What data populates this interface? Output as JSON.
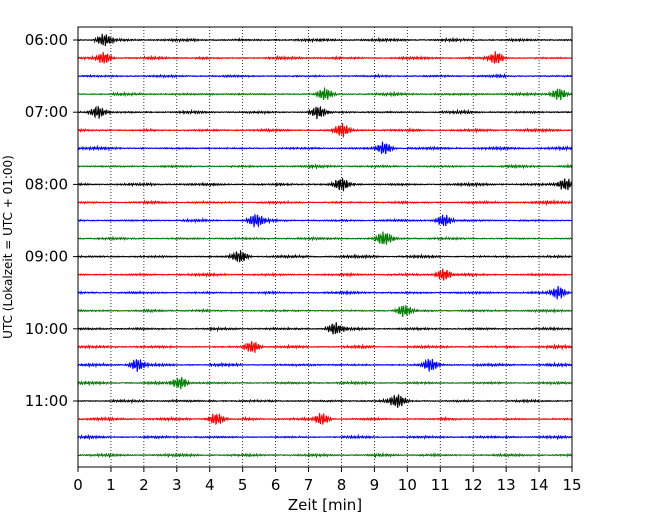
{
  "chart_data": {
    "type": "line",
    "title": "",
    "xlabel": "Zeit  [min]",
    "ylabel": "UTC (Lokalzeit = UTC + 01:00)",
    "xlim": [
      0,
      15
    ],
    "x_ticks": [
      0,
      1,
      2,
      3,
      4,
      5,
      6,
      7,
      8,
      9,
      10,
      11,
      12,
      13,
      14,
      15
    ],
    "y_tick_labels": [
      "06:00",
      "07:00",
      "08:00",
      "09:00",
      "10:00",
      "11:00"
    ],
    "grid": "vertical dotted",
    "legend": "none",
    "trace_interval_min": 15,
    "first_trace": "06:00",
    "trace_count": 24,
    "trace_colors": [
      "#000000",
      "#ff0000",
      "#0000ff",
      "#007f00"
    ],
    "traces": [
      {
        "start": "06:00",
        "color": "#000000",
        "bursts": [
          0.8
        ]
      },
      {
        "start": "06:15",
        "color": "#ff0000",
        "bursts": [
          0.8,
          12.7
        ]
      },
      {
        "start": "06:30",
        "color": "#0000ff",
        "bursts": []
      },
      {
        "start": "06:45",
        "color": "#007f00",
        "bursts": [
          7.5,
          14.6
        ]
      },
      {
        "start": "07:00",
        "color": "#000000",
        "bursts": [
          0.6,
          7.3
        ]
      },
      {
        "start": "07:15",
        "color": "#ff0000",
        "bursts": [
          8.0
        ]
      },
      {
        "start": "07:30",
        "color": "#0000ff",
        "bursts": [
          9.3
        ]
      },
      {
        "start": "07:45",
        "color": "#007f00",
        "bursts": []
      },
      {
        "start": "08:00",
        "color": "#000000",
        "bursts": [
          8.0,
          14.8
        ]
      },
      {
        "start": "08:15",
        "color": "#ff0000",
        "bursts": []
      },
      {
        "start": "08:30",
        "color": "#0000ff",
        "bursts": [
          5.4,
          11.1
        ]
      },
      {
        "start": "08:45",
        "color": "#007f00",
        "bursts": [
          9.3
        ]
      },
      {
        "start": "09:00",
        "color": "#000000",
        "bursts": [
          4.9
        ]
      },
      {
        "start": "09:15",
        "color": "#ff0000",
        "bursts": [
          11.1
        ]
      },
      {
        "start": "09:30",
        "color": "#0000ff",
        "bursts": [
          14.6
        ]
      },
      {
        "start": "09:45",
        "color": "#007f00",
        "bursts": [
          9.9
        ]
      },
      {
        "start": "10:00",
        "color": "#000000",
        "bursts": [
          7.8
        ]
      },
      {
        "start": "10:15",
        "color": "#ff0000",
        "bursts": [
          5.3
        ]
      },
      {
        "start": "10:30",
        "color": "#0000ff",
        "bursts": [
          1.8,
          10.7
        ]
      },
      {
        "start": "10:45",
        "color": "#007f00",
        "bursts": [
          3.1
        ]
      },
      {
        "start": "11:00",
        "color": "#000000",
        "bursts": [
          9.7
        ]
      },
      {
        "start": "11:15",
        "color": "#ff0000",
        "bursts": [
          4.2,
          7.4
        ]
      },
      {
        "start": "11:30",
        "color": "#0000ff",
        "bursts": []
      },
      {
        "start": "11:45",
        "color": "#007f00",
        "bursts": []
      }
    ]
  }
}
